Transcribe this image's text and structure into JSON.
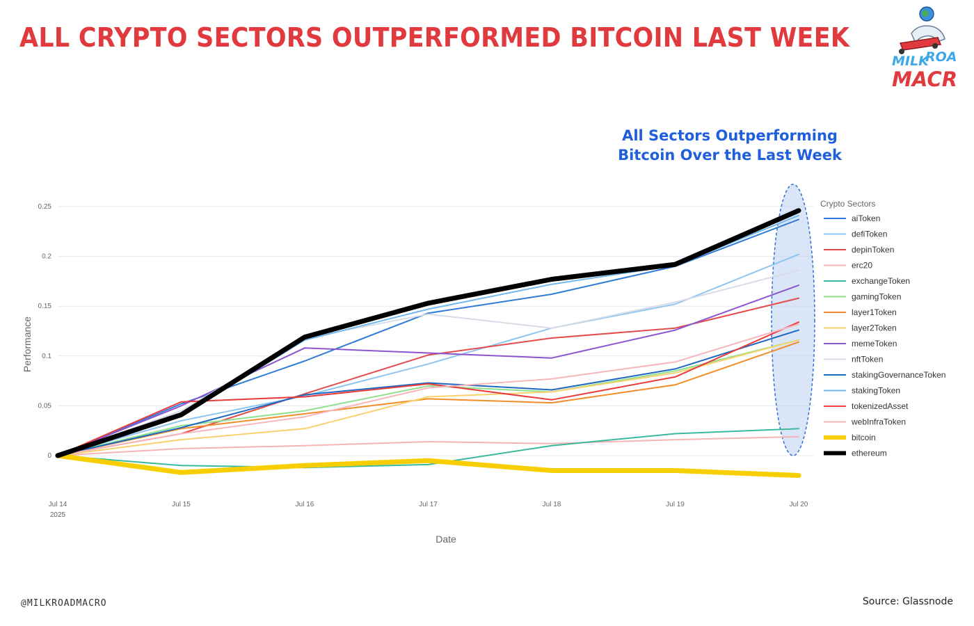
{
  "headline": "ALL CRYPTO SECTORS OUTPERFORMED BITCOIN LAST WEEK",
  "brand": {
    "line1_a": "MILK",
    "line1_b": "ROAD",
    "line2": "MACRO"
  },
  "footer": {
    "handle": "@MILKROADMACRO",
    "source": "Source: Glassnode"
  },
  "annotation": {
    "line1": "All Sectors Outperforming",
    "line2": "Bitcoin Over the Last Week",
    "color": "#1f5fdb"
  },
  "chart_data": {
    "type": "line",
    "xlabel": "Date",
    "ylabel": "Performance",
    "legend_title": "Crypto Sectors",
    "legend_position": "right",
    "grid": true,
    "ylim": [
      -0.035,
      0.25
    ],
    "y_ticks": [
      "0.25",
      "0.2",
      "0.15",
      "0.1",
      "0.05",
      "0"
    ],
    "y_tick_values": [
      0.25,
      0.2,
      0.15,
      0.1,
      0.05,
      0
    ],
    "x_ticks": [
      "Jul 14",
      "Jul 15",
      "Jul 16",
      "Jul 17",
      "Jul 18",
      "Jul 19",
      "Jul 20"
    ],
    "x_tick_sub": {
      "Jul 14": "2025"
    },
    "x": [
      "Jul 14",
      "Jul 15",
      "Jul 16",
      "Jul 17",
      "Jul 18",
      "Jul 19",
      "Jul 20"
    ],
    "series": [
      {
        "name": "aiToken",
        "color": "#2f7bd6",
        "values": [
          0,
          0.052,
          0.095,
          0.143,
          0.162,
          0.19,
          0.237
        ]
      },
      {
        "name": "defiToken",
        "color": "#8ec5f0",
        "values": [
          0,
          0.035,
          0.06,
          0.092,
          0.128,
          0.152,
          0.202
        ]
      },
      {
        "name": "depinToken",
        "color": "#e54b4b",
        "values": [
          0,
          0.022,
          0.062,
          0.101,
          0.118,
          0.128,
          0.158
        ]
      },
      {
        "name": "erc20",
        "color": "#f5b5b5",
        "values": [
          0,
          0.007,
          0.01,
          0.014,
          0.012,
          0.016,
          0.019
        ]
      },
      {
        "name": "exchangeToken",
        "color": "#3ab89c",
        "values": [
          0,
          -0.01,
          -0.012,
          -0.009,
          0.01,
          0.022,
          0.027
        ]
      },
      {
        "name": "gamingToken",
        "color": "#8ee08e",
        "values": [
          0,
          0.03,
          0.045,
          0.07,
          0.064,
          0.085,
          0.116
        ]
      },
      {
        "name": "layer1Token",
        "color": "#f28c28",
        "values": [
          0,
          0.027,
          0.042,
          0.057,
          0.053,
          0.071,
          0.114
        ]
      },
      {
        "name": "layer2Token",
        "color": "#f9d26e",
        "values": [
          0,
          0.016,
          0.027,
          0.059,
          0.064,
          0.083,
          0.116
        ]
      },
      {
        "name": "memeToken",
        "color": "#8a55cf",
        "values": [
          0,
          0.05,
          0.108,
          0.103,
          0.098,
          0.126,
          0.171
        ]
      },
      {
        "name": "nftToken",
        "color": "#d6dce6",
        "values": [
          0,
          0.045,
          0.118,
          0.142,
          0.128,
          0.154,
          0.186
        ]
      },
      {
        "name": "stakingGovernanceToken",
        "color": "#1f68c0",
        "values": [
          0,
          0.028,
          0.061,
          0.073,
          0.066,
          0.087,
          0.126
        ]
      },
      {
        "name": "stakingToken",
        "color": "#74b8ec",
        "values": [
          0,
          0.04,
          0.116,
          0.147,
          0.172,
          0.191,
          0.241
        ]
      },
      {
        "name": "tokenizedAsset",
        "color": "#ea3b3b",
        "values": [
          0,
          0.054,
          0.059,
          0.072,
          0.056,
          0.079,
          0.134
        ]
      },
      {
        "name": "webInfraToken",
        "color": "#f7b6bb",
        "values": [
          0,
          0.022,
          0.039,
          0.068,
          0.077,
          0.094,
          0.132
        ]
      },
      {
        "name": "bitcoin",
        "color": "#f7cf00",
        "width": 7,
        "values": [
          0,
          -0.017,
          -0.01,
          -0.005,
          -0.015,
          -0.015,
          -0.02
        ]
      },
      {
        "name": "ethereum",
        "color": "#000000",
        "width": 7,
        "values": [
          0,
          0.041,
          0.119,
          0.153,
          0.177,
          0.192,
          0.246
        ]
      }
    ]
  }
}
